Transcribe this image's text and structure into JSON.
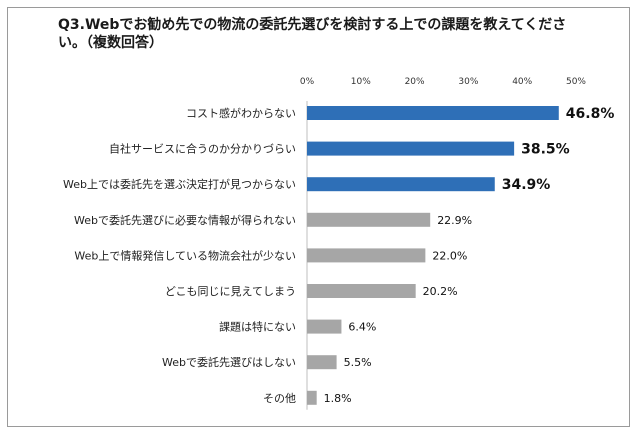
{
  "chart_data": {
    "type": "bar",
    "orientation": "horizontal",
    "title": "Q3.Webでお勧め先での物流の委託先選びを検討する上での課題を教えてください。（複数回答）",
    "categories": [
      "コスト感がわからない",
      "自社サービスに合うのか分かりづらい",
      "Web上では委託先を選ぶ決定打が見つからない",
      "Webで委託先選びに必要な情報が得られない",
      "Web上で情報発信している物流会社が少ない",
      "どこも同じに見えてしまう",
      "課題は特にない",
      "Webで委託先選びはしない",
      "その他"
    ],
    "values": [
      46.8,
      38.5,
      34.9,
      22.9,
      22.0,
      20.2,
      6.4,
      5.5,
      1.8
    ],
    "value_labels": [
      "46.8%",
      "38.5%",
      "34.9%",
      "22.9%",
      "22.0%",
      "20.2%",
      "6.4%",
      "5.5%",
      "1.8%"
    ],
    "xlim": [
      0,
      50
    ],
    "x_ticks": [
      "0%",
      "10%",
      "20%",
      "30%",
      "40%",
      "50%"
    ],
    "grid": false,
    "colors": {
      "highlight": "#2e6fb7",
      "normal": "#a6a6a6"
    },
    "highlight_count": 3
  }
}
